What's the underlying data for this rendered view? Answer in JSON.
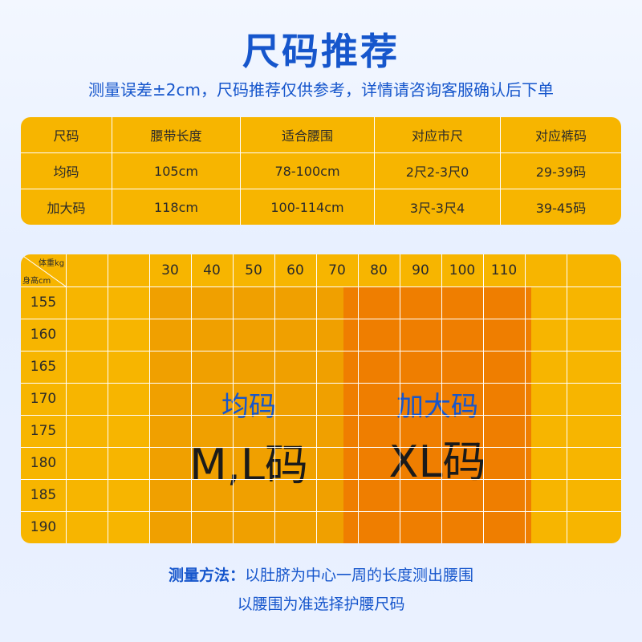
{
  "page": {
    "title": "尺码推荐",
    "subtitle": "测量误差±2cm，尺码推荐仅供参考，详情请咨询客服确认后下单"
  },
  "size_table": {
    "headers": [
      "尺码",
      "腰带长度",
      "适合腰围",
      "对应市尺",
      "对应裤码"
    ],
    "rows": [
      [
        "均码",
        "105cm",
        "78-100cm",
        "2尺2-3尺0",
        "29-39码"
      ],
      [
        "加大码",
        "118cm",
        "100-114cm",
        "3尺-3尺4",
        "39-45码"
      ]
    ]
  },
  "grid": {
    "corner_weight": "体重kg",
    "corner_height": "身高cm",
    "weights": [
      "30",
      "40",
      "50",
      "60",
      "70",
      "80",
      "90",
      "100",
      "110"
    ],
    "heights": [
      "155",
      "160",
      "165",
      "170",
      "175",
      "180",
      "185",
      "190"
    ],
    "zones": [
      {
        "name": "均码",
        "size": "M,L码",
        "color": "#f0a000"
      },
      {
        "name": "加大码",
        "size": "XL码",
        "color": "#ef7e00"
      }
    ],
    "background_color": "#f7b500"
  },
  "method": {
    "label": "测量方法：",
    "text1": "以肚脐为中心一周的长度测出腰围",
    "text2": "以腰围为准选择护腰尺码"
  },
  "colors": {
    "accent": "#1656cc",
    "table_bg": "#f7b500"
  }
}
